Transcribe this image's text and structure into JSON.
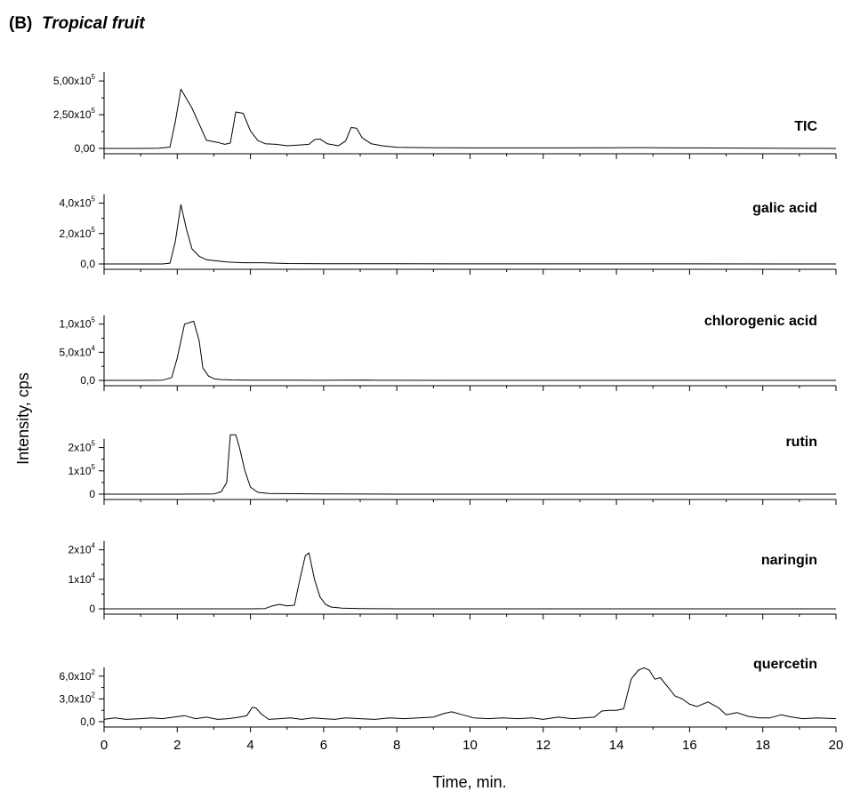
{
  "figure": {
    "label": "(B)",
    "title": "Tropical fruit"
  },
  "chart_data": [
    {
      "type": "line",
      "name": "TIC",
      "ylim": [
        0,
        560000
      ],
      "yticks": [
        {
          "v": 0,
          "t": "0,00"
        },
        {
          "v": 250000,
          "t": "2,50x10",
          "e": "5"
        },
        {
          "v": 500000,
          "t": "5,00x10",
          "e": "5"
        }
      ],
      "x": [
        0,
        0.5,
        1,
        1.5,
        1.8,
        1.95,
        2.1,
        2.4,
        2.8,
        3.1,
        3.3,
        3.45,
        3.6,
        3.8,
        4,
        4.2,
        4.4,
        4.7,
        5,
        5.3,
        5.6,
        5.75,
        5.9,
        6.1,
        6.4,
        6.6,
        6.75,
        6.9,
        7.05,
        7.3,
        7.6,
        8,
        9,
        10,
        12,
        14,
        14.6,
        16,
        18,
        20
      ],
      "values": [
        0,
        0,
        0,
        1000,
        10000,
        200000,
        440000,
        300000,
        60000,
        45000,
        30000,
        40000,
        270000,
        260000,
        130000,
        60000,
        35000,
        30000,
        20000,
        25000,
        30000,
        65000,
        70000,
        35000,
        20000,
        55000,
        155000,
        150000,
        80000,
        35000,
        20000,
        8000,
        5000,
        4000,
        4000,
        5000,
        6000,
        4000,
        2000,
        0
      ]
    },
    {
      "type": "line",
      "name": "galic acid",
      "ylim": [
        0,
        450000
      ],
      "yticks": [
        {
          "v": 0,
          "t": "0,0"
        },
        {
          "v": 200000,
          "t": "2,0x10",
          "e": "5"
        },
        {
          "v": 400000,
          "t": "4,0x10",
          "e": "5"
        }
      ],
      "x": [
        0,
        1,
        1.6,
        1.8,
        1.95,
        2.1,
        2.25,
        2.4,
        2.6,
        2.8,
        3.1,
        3.4,
        3.8,
        4.3,
        4.7,
        5,
        6,
        8,
        20
      ],
      "values": [
        0,
        0,
        0,
        5000,
        150000,
        390000,
        230000,
        100000,
        50000,
        28000,
        20000,
        12000,
        8000,
        8000,
        5000,
        3000,
        2000,
        1000,
        0
      ]
    },
    {
      "type": "line",
      "name": "chlorogenic acid",
      "ylim": [
        0,
        120000
      ],
      "yticks": [
        {
          "v": 0,
          "t": "0,0"
        },
        {
          "v": 50000,
          "t": "5,0x10",
          "e": "4"
        },
        {
          "v": 100000,
          "t": "1,0x10",
          "e": "5"
        }
      ],
      "x": [
        0,
        1,
        1.6,
        1.85,
        2,
        2.2,
        2.45,
        2.6,
        2.7,
        2.85,
        3,
        3.2,
        3.5,
        4,
        5,
        6,
        7.2,
        7.5,
        8,
        10,
        14,
        20
      ],
      "values": [
        0,
        0,
        500,
        5000,
        40000,
        100000,
        105000,
        70000,
        22000,
        8000,
        3000,
        1500,
        800,
        500,
        300,
        200,
        600,
        200,
        100,
        0,
        0,
        0
      ]
    },
    {
      "type": "line",
      "name": "rutin",
      "ylim": [
        0,
        290000
      ],
      "yticks": [
        {
          "v": 0,
          "t": "0"
        },
        {
          "v": 100000,
          "t": "1x10",
          "e": "5"
        },
        {
          "v": 200000,
          "t": "2x10",
          "e": "5"
        }
      ],
      "x": [
        0,
        2,
        3,
        3.2,
        3.35,
        3.45,
        3.6,
        3.7,
        3.85,
        4,
        4.2,
        4.5,
        6,
        8,
        20
      ],
      "values": [
        0,
        0,
        1000,
        10000,
        50000,
        255000,
        255000,
        200000,
        100000,
        30000,
        8000,
        3000,
        1000,
        0,
        0
      ]
    },
    {
      "type": "line",
      "name": "naringin",
      "ylim": [
        0,
        22000
      ],
      "yticks": [
        {
          "v": 0,
          "t": "0"
        },
        {
          "v": 10000,
          "t": "1x10",
          "e": "4"
        },
        {
          "v": 20000,
          "t": "2x10",
          "e": "4"
        }
      ],
      "x": [
        0,
        2,
        4,
        4.4,
        4.6,
        4.8,
        5,
        5.2,
        5.35,
        5.5,
        5.6,
        5.75,
        5.9,
        6.05,
        6.2,
        6.5,
        7,
        8,
        20
      ],
      "values": [
        0,
        0,
        0,
        100,
        1000,
        1500,
        1000,
        1200,
        10000,
        18000,
        19000,
        10000,
        4000,
        1500,
        600,
        200,
        100,
        0,
        0
      ]
    },
    {
      "type": "line",
      "name": "quercetin",
      "ylim": [
        0,
        820
      ],
      "yticks": [
        {
          "v": 0,
          "t": "0,0"
        },
        {
          "v": 300,
          "t": "3,0x10",
          "e": "2"
        },
        {
          "v": 600,
          "t": "6,0x10",
          "e": "2"
        }
      ],
      "x": [
        0,
        0.3,
        0.6,
        1,
        1.3,
        1.6,
        1.9,
        2.2,
        2.5,
        2.8,
        3.1,
        3.4,
        3.7,
        3.9,
        4.05,
        4.15,
        4.3,
        4.5,
        4.8,
        5.1,
        5.4,
        5.7,
        6,
        6.3,
        6.6,
        7,
        7.4,
        7.8,
        8.2,
        8.6,
        9,
        9.3,
        9.5,
        9.8,
        10.1,
        10.5,
        10.9,
        11.3,
        11.7,
        12,
        12.4,
        12.8,
        13.1,
        13.4,
        13.6,
        13.8,
        14,
        14.2,
        14.4,
        14.6,
        14.75,
        14.9,
        15.05,
        15.2,
        15.4,
        15.6,
        15.8,
        16,
        16.2,
        16.5,
        16.8,
        17,
        17.3,
        17.6,
        17.9,
        18.2,
        18.5,
        18.8,
        19.1,
        19.5,
        20
      ],
      "values": [
        30,
        50,
        30,
        40,
        50,
        40,
        60,
        80,
        40,
        60,
        30,
        40,
        60,
        80,
        190,
        180,
        100,
        30,
        40,
        50,
        30,
        50,
        40,
        30,
        50,
        40,
        30,
        50,
        40,
        50,
        60,
        110,
        130,
        90,
        50,
        40,
        50,
        40,
        50,
        30,
        60,
        40,
        50,
        60,
        140,
        150,
        150,
        170,
        560,
        680,
        710,
        680,
        560,
        580,
        460,
        340,
        300,
        230,
        200,
        260,
        180,
        90,
        120,
        70,
        50,
        50,
        90,
        60,
        40,
        50,
        40
      ]
    }
  ],
  "axes": {
    "xlabel": "Time, min.",
    "ylabel": "Intensity, cps",
    "xlim": [
      0,
      20
    ],
    "xticks": [
      0,
      2,
      4,
      6,
      8,
      10,
      12,
      14,
      16,
      18,
      20
    ]
  }
}
